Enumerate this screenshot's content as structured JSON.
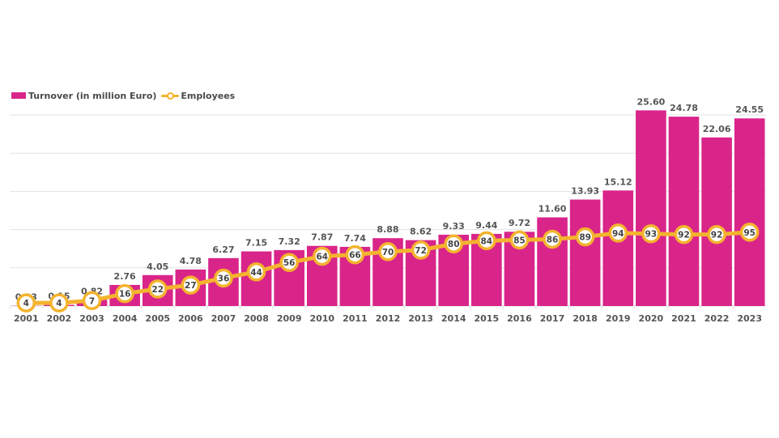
{
  "chart_data": {
    "type": "bar",
    "title": "",
    "xlabel": "",
    "ylabel": "",
    "grid": true,
    "legend_position": "top-left",
    "categories": [
      "2001",
      "2002",
      "2003",
      "2004",
      "2005",
      "2006",
      "2007",
      "2008",
      "2009",
      "2010",
      "2011",
      "2012",
      "2013",
      "2014",
      "2015",
      "2016",
      "2017",
      "2018",
      "2019",
      "2020",
      "2021",
      "2022",
      "2023"
    ],
    "series": [
      {
        "name": "Turnover (in million Euro)",
        "type": "bar",
        "color": "#d9258a",
        "values": [
          0.03,
          0.15,
          0.82,
          2.76,
          4.05,
          4.78,
          6.27,
          7.15,
          7.32,
          7.87,
          7.74,
          8.88,
          8.62,
          9.33,
          9.44,
          9.72,
          11.6,
          13.93,
          15.12,
          25.6,
          24.78,
          22.06,
          24.55
        ],
        "labels": [
          "0.03",
          "0.15",
          "0.82",
          "2.76",
          "4.05",
          "4.78",
          "6.27",
          "7.15",
          "7.32",
          "7.87",
          "7.74",
          "8.88",
          "8.62",
          "9.33",
          "9.44",
          "9.72",
          "11.60",
          "13.93",
          "15.12",
          "25.60",
          "24.78",
          "22.06",
          "24.55"
        ],
        "ylim": [
          0,
          25
        ]
      },
      {
        "name": "Employees",
        "type": "line",
        "color": "#f4b32e",
        "values": [
          4,
          4,
          7,
          16,
          22,
          27,
          36,
          44,
          56,
          64,
          66,
          70,
          72,
          80,
          84,
          85,
          86,
          89,
          94,
          93,
          92,
          92,
          95
        ],
        "ylim": [
          0,
          100
        ]
      }
    ],
    "gridlines": [
      0,
      5,
      10,
      15,
      20,
      25
    ]
  }
}
